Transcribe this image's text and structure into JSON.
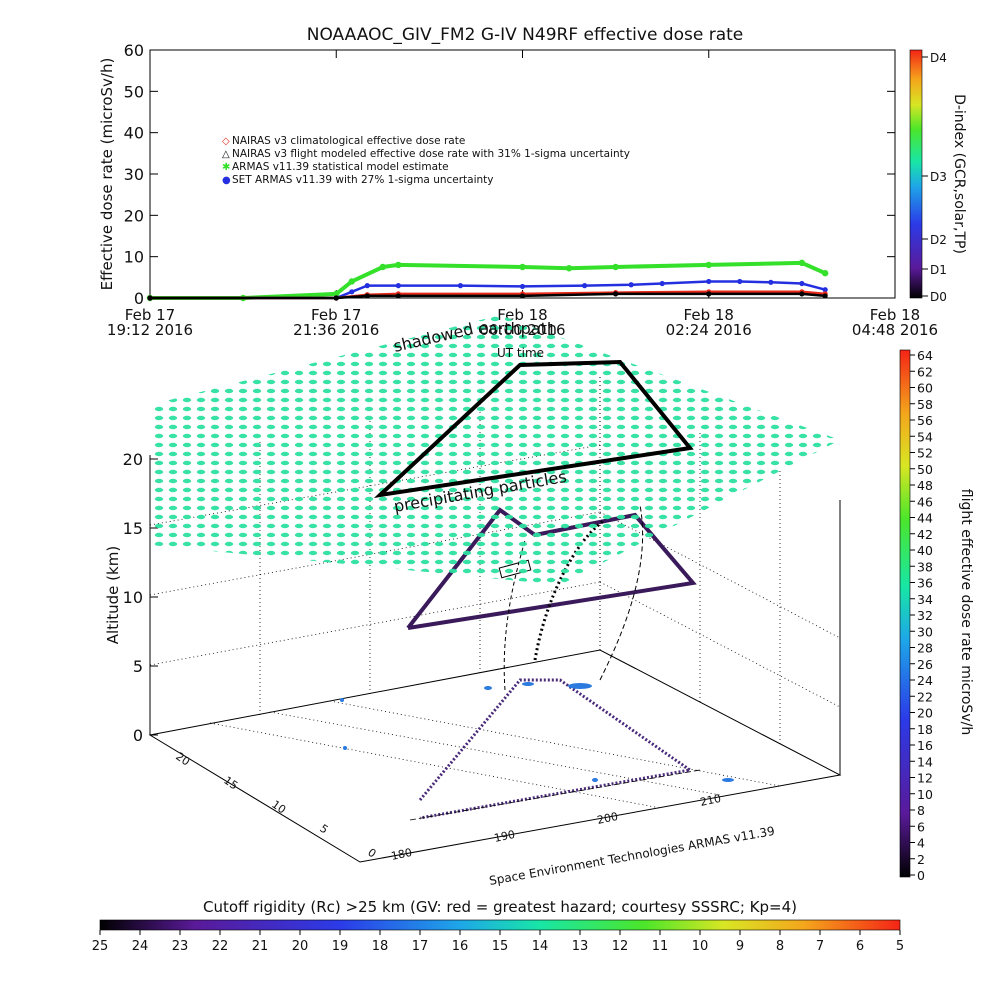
{
  "title": "NOAAAOC_GIV_FM2 G-IV   N49RF  effective dose rate",
  "top_chart": {
    "ylabel": "Effective dose rate (microSv/h)",
    "y_ticks": [
      "0",
      "10",
      "20",
      "30",
      "40",
      "50",
      "60"
    ],
    "x_ticks": [
      {
        "l1": "Feb 17",
        "l2": "19:12 2016"
      },
      {
        "l1": "Feb 17",
        "l2": "21:36 2016"
      },
      {
        "l1": "Feb 18",
        "l2": "00:00 2016"
      },
      {
        "l1": "Feb 18",
        "l2": "02:24 2016"
      },
      {
        "l1": "Feb 18",
        "l2": "04:48 2016"
      }
    ],
    "legend": [
      {
        "symbol": "◇",
        "color": "#e8291b",
        "text": "NAIRAS v3 climatological effective dose rate"
      },
      {
        "symbol": "△",
        "color": "#000000",
        "text": "NAIRAS v3 flight modeled effective dose rate with 31% 1-sigma uncertainty"
      },
      {
        "symbol": "✱",
        "color": "#34e02a",
        "text": "ARMAS v11.39 statistical model estimate"
      },
      {
        "symbol": "●",
        "color": "#2430e0",
        "text": "SET ARMAS v11.39 with 27% 1-sigma uncertainty"
      }
    ],
    "dindex_label": "D-index (GCR,solar,TP)",
    "dindex_ticks": [
      "D4",
      "D3",
      "D2",
      "D1",
      "D0"
    ]
  },
  "chart_data": {
    "type": "line",
    "x_unit": "UT hours since Feb 17 19:12 2016",
    "xlim": [
      0,
      9.6
    ],
    "ylim": [
      0,
      60
    ],
    "series": [
      {
        "name": "ARMAS v11.39 statistical model estimate",
        "color": "#34e02a",
        "x": [
          0,
          1.2,
          2.4,
          2.6,
          3.0,
          3.2,
          4.8,
          5.4,
          6.0,
          7.2,
          8.4,
          8.7
        ],
        "y": [
          0,
          0,
          1,
          4,
          7.5,
          8,
          7.5,
          7.2,
          7.5,
          8,
          8.5,
          6
        ]
      },
      {
        "name": "SET ARMAS v11.39 with 27% 1-sigma uncertainty",
        "color": "#2430e0",
        "x": [
          0,
          2.4,
          2.6,
          2.8,
          3.2,
          4.0,
          4.8,
          5.6,
          6.2,
          6.6,
          7.2,
          7.6,
          8.0,
          8.4,
          8.7
        ],
        "y": [
          0,
          0,
          1.5,
          3,
          3,
          3,
          2.8,
          3,
          3.2,
          3.5,
          4,
          4,
          3.8,
          3.5,
          2
        ]
      },
      {
        "name": "NAIRAS v3 climatological effective dose rate",
        "color": "#e8291b",
        "x": [
          0,
          2.4,
          2.8,
          3.2,
          4.8,
          6.0,
          7.2,
          8.4,
          8.7
        ],
        "y": [
          0,
          0,
          0.8,
          1,
          1,
          1.3,
          1.5,
          1.5,
          1
        ]
      },
      {
        "name": "NAIRAS v3 flight modeled effective dose rate with 31% 1-sigma uncertainty",
        "color": "#000000",
        "x": [
          0,
          2.4,
          2.8,
          3.2,
          4.8,
          6.0,
          7.2,
          8.4,
          8.7
        ],
        "y": [
          0,
          0,
          0.5,
          0.5,
          0.5,
          1,
          1,
          1,
          0.5
        ]
      }
    ]
  },
  "plot3d": {
    "ylabel": "Altitude (km)",
    "z_ticks": [
      "0",
      "5",
      "10",
      "15",
      "20"
    ],
    "lat_ticks": [
      "20",
      "15",
      "10",
      "5",
      "0"
    ],
    "lon_ticks": [
      "180",
      "190",
      "200",
      "210"
    ],
    "credit": "Space Environment Technologies ARMAS v11.39",
    "ann_shadowed": "shadowed",
    "ann_earthpath": "earthpath",
    "ann_ut": "UT time",
    "ann_precip": "precipitating particles"
  },
  "right_bar": {
    "label": "flight effective dose rate microSv/h",
    "ticks": [
      "64",
      "62",
      "60",
      "58",
      "56",
      "54",
      "52",
      "50",
      "48",
      "46",
      "44",
      "42",
      "40",
      "38",
      "36",
      "34",
      "32",
      "30",
      "28",
      "26",
      "24",
      "22",
      "20",
      "18",
      "16",
      "14",
      "12",
      "10",
      "8",
      "6",
      "4",
      "2",
      "0"
    ]
  },
  "bottom_bar": {
    "label": "Cutoff rigidity (Rc) >25 km (GV: red = greatest hazard; courtesy SSSRC; Kp=4)",
    "ticks": [
      "25",
      "24",
      "23",
      "22",
      "21",
      "20",
      "19",
      "18",
      "17",
      "16",
      "15",
      "14",
      "13",
      "12",
      "11",
      "10",
      "9",
      "8",
      "7",
      "6",
      "5"
    ]
  },
  "colors": {
    "bar_grad": "#000000,#5a1a9a,#2b3be8,#1ea6e8,#18e6a6,#4ce62a,#d8e624,#f4a61c,#f42416"
  }
}
